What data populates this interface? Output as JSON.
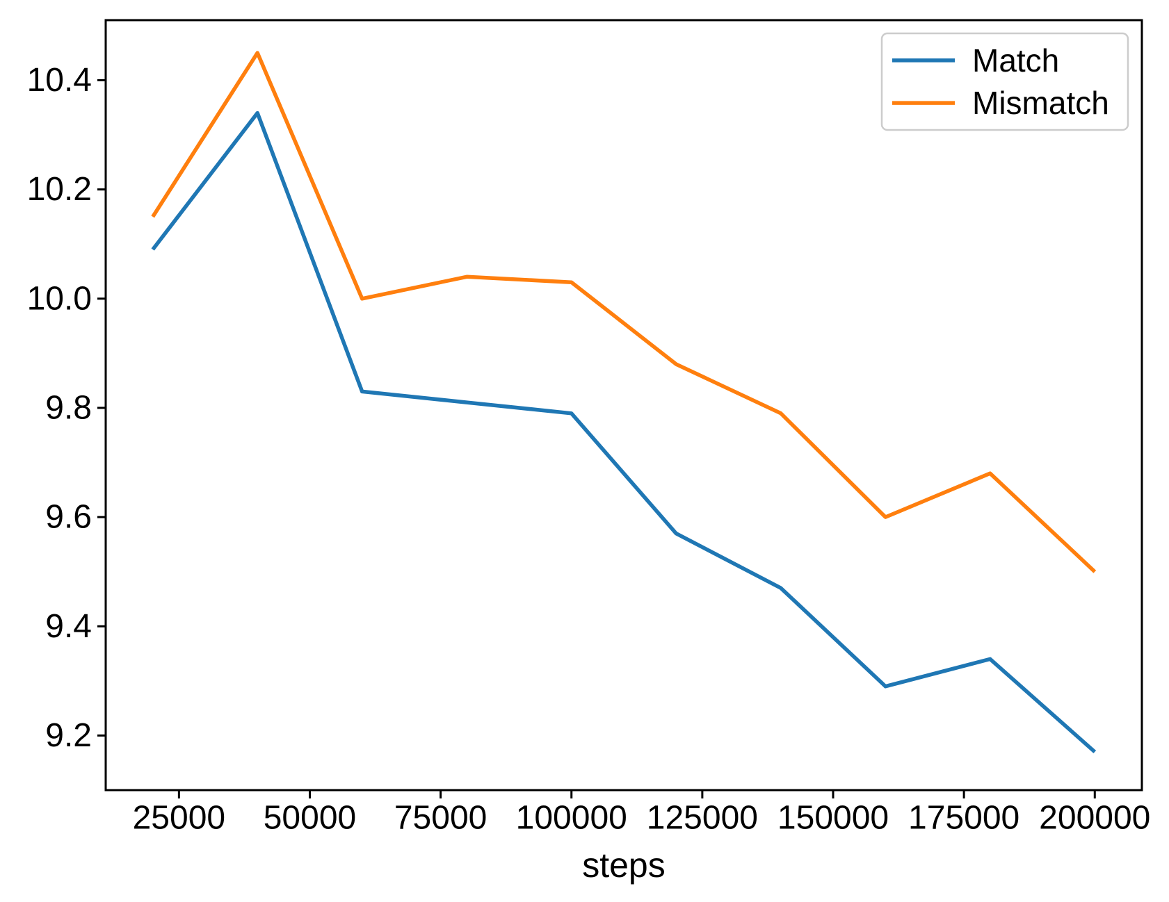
{
  "chart_data": {
    "type": "line",
    "title": "",
    "xlabel": "steps",
    "ylabel": "",
    "grid": false,
    "legend_position": "upper right",
    "x": [
      20000,
      40000,
      60000,
      80000,
      100000,
      120000,
      140000,
      160000,
      180000,
      200000
    ],
    "series": [
      {
        "name": "Match",
        "color": "#1f77b4",
        "values": [
          10.09,
          10.34,
          9.83,
          9.81,
          9.79,
          9.57,
          9.47,
          9.29,
          9.34,
          9.17
        ]
      },
      {
        "name": "Mismatch",
        "color": "#ff7f0e",
        "values": [
          10.15,
          10.45,
          10.0,
          10.04,
          10.03,
          9.88,
          9.79,
          9.6,
          9.68,
          9.5
        ]
      }
    ],
    "xlim": [
      11000,
      209000
    ],
    "ylim": [
      9.1,
      10.51
    ],
    "xticks": {
      "values": [
        25000,
        50000,
        75000,
        100000,
        125000,
        150000,
        175000,
        200000
      ],
      "labels": [
        "25000",
        "50000",
        "75000",
        "100000",
        "125000",
        "150000",
        "175000",
        "200000"
      ]
    },
    "yticks": {
      "values": [
        9.2,
        9.4,
        9.6,
        9.8,
        10.0,
        10.2,
        10.4
      ],
      "labels": [
        "9.2",
        "9.4",
        "9.6",
        "9.8",
        "10.0",
        "10.2",
        "10.4"
      ]
    }
  },
  "colors": {
    "axis": "#000000",
    "background": "#ffffff",
    "legend_border": "#cccccc",
    "legend_fill": "#ffffff"
  }
}
